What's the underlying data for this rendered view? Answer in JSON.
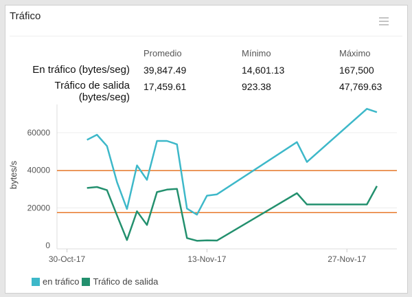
{
  "title": "Tráfico",
  "menu_icon": "hamburger-menu-icon",
  "stats": {
    "headers": [
      "Promedio",
      "Mínimo",
      "Máximo"
    ],
    "rows": [
      {
        "label": "En tráfico (bytes/seg)",
        "values": [
          "39,847.49",
          "14,601.13",
          "167,500"
        ]
      },
      {
        "label_line1": "Tráfico de salida",
        "label_line2": "(bytes/seg)",
        "values": [
          "17,459.61",
          "923.38",
          "47,769.63"
        ]
      }
    ]
  },
  "chart_data": {
    "type": "line",
    "ylabel": "bytes/s",
    "xlabel": "",
    "ylim": [
      0,
      75000
    ],
    "yticks": [
      "0",
      "20000",
      "40000",
      "60000"
    ],
    "ytick_values": [
      0,
      20000,
      40000,
      60000
    ],
    "xticks": [
      "30-Oct-17",
      "13-Nov-17",
      "27-Nov-17"
    ],
    "xtick_dates": [
      "2017-10-30",
      "2017-11-13",
      "2017-11-27"
    ],
    "xlim": [
      "2017-10-29",
      "2017-12-02"
    ],
    "grid": true,
    "legend_position": "bottom-left",
    "x": [
      "2017-11-01",
      "2017-11-02",
      "2017-11-03",
      "2017-11-04",
      "2017-11-05",
      "2017-11-06",
      "2017-11-07",
      "2017-11-08",
      "2017-11-09",
      "2017-11-10",
      "2017-11-11",
      "2017-11-12",
      "2017-11-13",
      "2017-11-14",
      "2017-11-22",
      "2017-11-23",
      "2017-11-29",
      "2017-11-30"
    ],
    "series": [
      {
        "name": "en tráfico",
        "color": "#3db8c9",
        "values": [
          56200,
          58900,
          52900,
          33700,
          19400,
          42600,
          34900,
          55600,
          55600,
          53800,
          19600,
          16400,
          26500,
          27200,
          55000,
          44400,
          72700,
          70900
        ]
      },
      {
        "name": "Tráfico de salida",
        "color": "#23906e",
        "values": [
          30600,
          31100,
          29400,
          16000,
          2900,
          18200,
          10900,
          28400,
          29700,
          30100,
          3900,
          2500,
          2700,
          2600,
          27800,
          21800,
          21800,
          31600
        ]
      }
    ],
    "reference_lines": [
      {
        "value": 39847.49,
        "color": "#e8782a"
      },
      {
        "value": 17459.61,
        "color": "#e8782a"
      }
    ]
  }
}
